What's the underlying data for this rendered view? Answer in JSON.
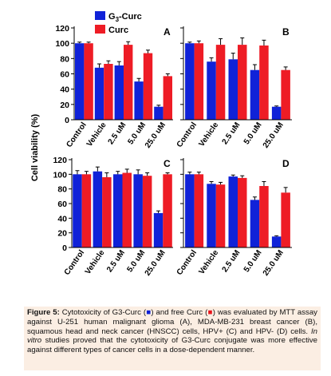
{
  "colors": {
    "g3curc": "#1022d8",
    "curc": "#ee1c25",
    "axis": "#000000"
  },
  "legend": {
    "g3curc": "G3-Curc",
    "curc": "Curc"
  },
  "y_axis_label": "Cell viability (%)",
  "chart_data": [
    {
      "type": "bar",
      "panel": "A",
      "categories": [
        "Control",
        "Vehicle",
        "2.5 uM",
        "5.0 uM",
        "25.0 uM"
      ],
      "ylim": [
        0,
        120
      ],
      "yticks": [
        "0",
        "20",
        "40",
        "60",
        "80",
        "100",
        "120"
      ],
      "show_ytick_labels": true,
      "series": [
        {
          "name": "G3-Curc",
          "values": [
            100,
            68,
            71,
            50,
            17
          ],
          "errors": [
            1.5,
            5,
            5,
            4,
            2
          ]
        },
        {
          "name": "Curc",
          "values": [
            100,
            73,
            98,
            87,
            57
          ],
          "errors": [
            1.5,
            4,
            4,
            4,
            3
          ]
        }
      ]
    },
    {
      "type": "bar",
      "panel": "B",
      "categories": [
        "Control",
        "Vehicle",
        "2.5 uM",
        "5.0 uM",
        "25.0 uM"
      ],
      "ylim": [
        0,
        120
      ],
      "yticks": [
        "0",
        "20",
        "40",
        "60",
        "80",
        "100",
        "120"
      ],
      "show_ytick_labels": false,
      "series": [
        {
          "name": "G3-Curc",
          "values": [
            100,
            76,
            79,
            65,
            17
          ],
          "errors": [
            1.5,
            5,
            8,
            7,
            1
          ]
        },
        {
          "name": "Curc",
          "values": [
            100,
            98,
            98,
            97,
            65
          ],
          "errors": [
            3,
            8,
            9,
            7,
            4
          ]
        }
      ]
    },
    {
      "type": "bar",
      "panel": "C",
      "categories": [
        "Control",
        "Vehicle",
        "2.5 uM",
        "5.0 uM",
        "25.0 uM"
      ],
      "ylim": [
        0,
        120
      ],
      "yticks": [
        "0",
        "20",
        "40",
        "60",
        "80",
        "100",
        "120"
      ],
      "show_ytick_labels": true,
      "series": [
        {
          "name": "G3-Curc",
          "values": [
            100,
            104,
            100,
            100,
            47
          ],
          "errors": [
            5,
            6,
            4,
            6,
            3
          ]
        },
        {
          "name": "Curc",
          "values": [
            100,
            96,
            102,
            98,
            100
          ],
          "errors": [
            4,
            6,
            5,
            4,
            2
          ]
        }
      ]
    },
    {
      "type": "bar",
      "panel": "D",
      "categories": [
        "Control",
        "Vehicle",
        "2.5 uM",
        "5.0 uM",
        "25.0 uM"
      ],
      "ylim": [
        0,
        120
      ],
      "yticks": [
        "0",
        "20",
        "40",
        "60",
        "80",
        "100",
        "120"
      ],
      "show_ytick_labels": false,
      "series": [
        {
          "name": "G3-Curc",
          "values": [
            100,
            87,
            97,
            65,
            15
          ],
          "errors": [
            3,
            3,
            2,
            4,
            1
          ]
        },
        {
          "name": "Curc",
          "values": [
            100,
            86,
            95,
            84,
            75
          ],
          "errors": [
            3,
            3,
            3,
            6,
            7
          ]
        }
      ]
    }
  ],
  "caption": {
    "label": "Figure 5:",
    "part1": " Cytotoxicity of G3-Curc (",
    "blue_marker": "■",
    "part2": ") and free Curc (",
    "red_marker": "■",
    "part3": ") was evaluated by MTT assay against U-251 human malignant glioma (A), MDA-MB-231 breast cancer (B), squamous head and neck cancer (HNSCC) cells, HPV+ (C) and HPV- (D) cells. ",
    "italic": "In vitro",
    "part4": " studies proved that the cytotoxicity of G3-Curc conjugate was more effective against different types of cancer cells in a dose-dependent manner."
  }
}
